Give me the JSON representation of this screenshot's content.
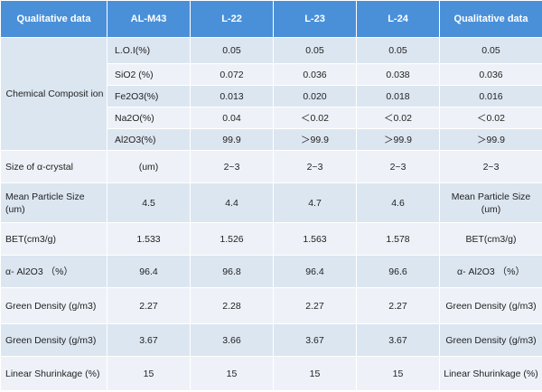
{
  "headers": [
    "Qualitative data",
    "AL-M43",
    "L-22",
    "L-23",
    "L-24",
    "Qualitative data"
  ],
  "chemical": {
    "label": "Chemical Composit ion",
    "rows": [
      {
        "sub": "L.O.I(%)",
        "v": [
          "0.05",
          "0.05",
          "0.05",
          "0.05"
        ]
      },
      {
        "sub": "SiO2 (%)",
        "v": [
          "0.072",
          "0.036",
          "0.038",
          "0.036"
        ]
      },
      {
        "sub": "Fe2O3(%)",
        "v": [
          "0.013",
          "0.020",
          "0.018",
          "0.016"
        ]
      },
      {
        "sub": "Na2O(%)",
        "v": [
          "0.04",
          "＜0.02",
          "＜0.02",
          "＜0.02"
        ]
      },
      {
        "sub": "Al2O3(%)",
        "v": [
          "99.9",
          "＞99.9",
          "＞99.9",
          "＞99.9"
        ]
      }
    ]
  },
  "rows": [
    {
      "label": "Size of  α-crystal",
      "v": [
        "(um)",
        "2~3",
        "2~3",
        "2~3"
      ],
      "right": "2~3"
    },
    {
      "label": "Mean Particle Size (um)",
      "v": [
        "4.5",
        "4.4",
        "4.7",
        "4.6"
      ],
      "right": "Mean Particle Size (um)"
    },
    {
      "label": "BET(cm3/g)",
      "v": [
        "1.533",
        "1.526",
        "1.563",
        "1.578"
      ],
      "right": "BET(cm3/g)"
    },
    {
      "label": "α- Al2O3 （%）",
      "v": [
        "96.4",
        "96.8",
        "96.4",
        "96.6"
      ],
      "right": "α- Al2O3 （%）"
    },
    {
      "label": "Green Density (g/m3)",
      "v": [
        "2.27",
        "2.28",
        "2.27",
        "2.27"
      ],
      "right": "Green Density (g/m3)"
    },
    {
      "label": "Green Density (g/m3)",
      "v": [
        "3.67",
        "3.66",
        "3.67",
        "3.67"
      ],
      "right": "Green Density (g/m3)"
    },
    {
      "label": "Linear Shurinkage (%)",
      "v": [
        "15",
        "15",
        "15",
        "15"
      ],
      "right": "Linear Shurinkage (%)"
    }
  ]
}
